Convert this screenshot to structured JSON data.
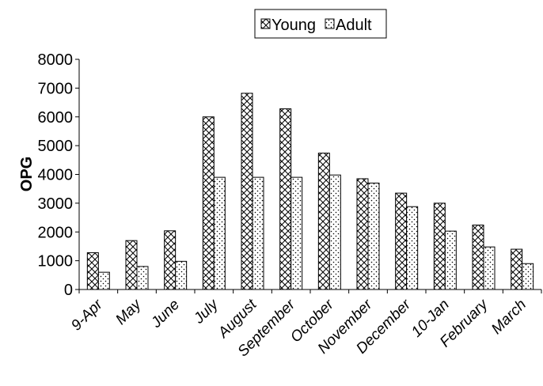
{
  "chart_data": {
    "type": "bar",
    "title": "",
    "xlabel": "",
    "ylabel": "OPG",
    "ylim": [
      0,
      8000
    ],
    "yticks": [
      0,
      1000,
      2000,
      3000,
      4000,
      5000,
      6000,
      7000,
      8000
    ],
    "grid": false,
    "legend_position": "top-center",
    "categories": [
      "9-Apr",
      "May",
      "June",
      "July",
      "August",
      "September",
      "October",
      "November",
      "December",
      "10-Jan",
      "February",
      "March"
    ],
    "series": [
      {
        "name": "Young",
        "pattern": "crosshatch",
        "values": [
          1280,
          1700,
          2040,
          6000,
          6820,
          6280,
          4740,
          3850,
          3350,
          3000,
          2240,
          1400
        ]
      },
      {
        "name": "Adult",
        "pattern": "dots",
        "values": [
          600,
          800,
          980,
          3900,
          3900,
          3900,
          3980,
          3700,
          2880,
          2030,
          1480,
          900
        ]
      }
    ]
  }
}
